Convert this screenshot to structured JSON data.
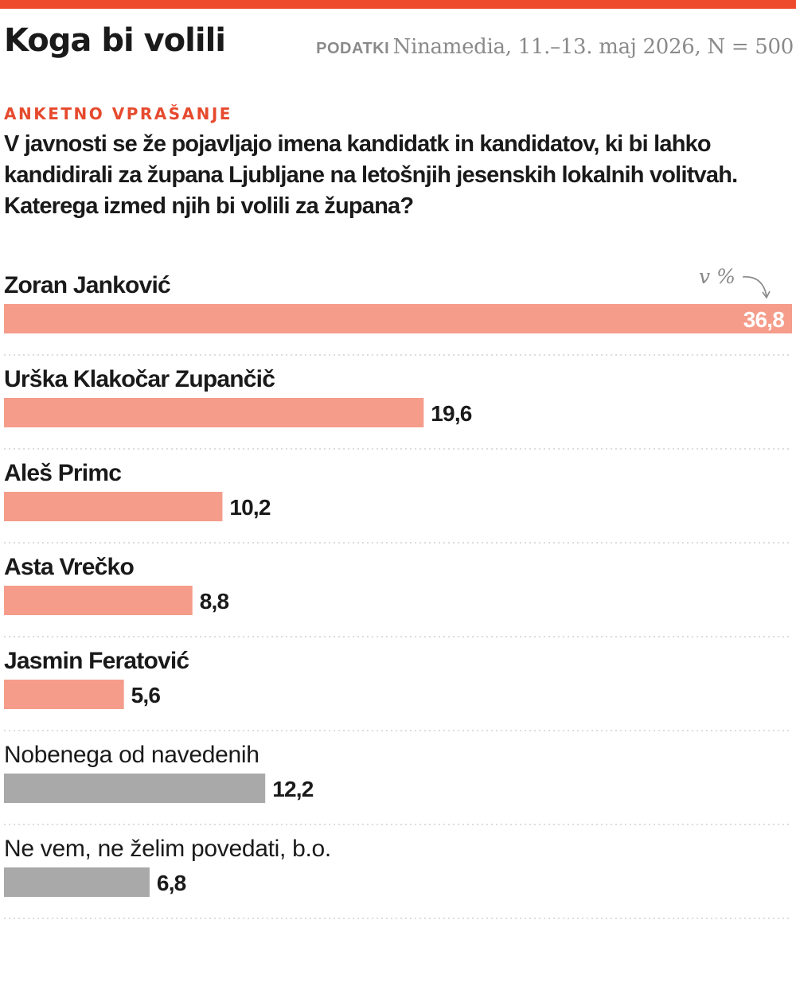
{
  "header": {
    "title": "Koga bi volili",
    "source_label": "PODATKI",
    "source_text": "Ninamedia, 11.–13. maj 2026, N = 500"
  },
  "kicker": "ANKETNO VPRAŠANJE",
  "question": "V javnosti se že pojavljajo imena kandidatk in kandidatov, ki bi lahko kandidirali za župana Ljubljane na letošnjih jesenskih lokalnih volitvah. Katerega izmed njih bi volili za župana?",
  "unit_label": "v %",
  "colors": {
    "accent": "#ee4a2c",
    "candidate_bar": "#f59c8a",
    "neutral_bar": "#a9a9a9",
    "divider": "#c8c8c8"
  },
  "chart_data": {
    "type": "bar",
    "orientation": "horizontal",
    "unit": "v %",
    "categories": [
      "Zoran Janković",
      "Urška Klakočar Zupančič",
      "Aleš Primc",
      "Asta Vrečko",
      "Jasmin Feratović",
      "Nobenega od navedenih",
      "Ne vem, ne želim povedati, b.o."
    ],
    "values": [
      36.8,
      19.6,
      10.2,
      8.8,
      5.6,
      12.2,
      6.8
    ],
    "value_labels": [
      "36,8",
      "19,6",
      "10,2",
      "8,8",
      "5,6",
      "12,2",
      "6,8"
    ],
    "groups": [
      "candidate",
      "candidate",
      "candidate",
      "candidate",
      "candidate",
      "neutral",
      "neutral"
    ],
    "xlim": [
      0,
      36.8
    ],
    "grid": false
  }
}
